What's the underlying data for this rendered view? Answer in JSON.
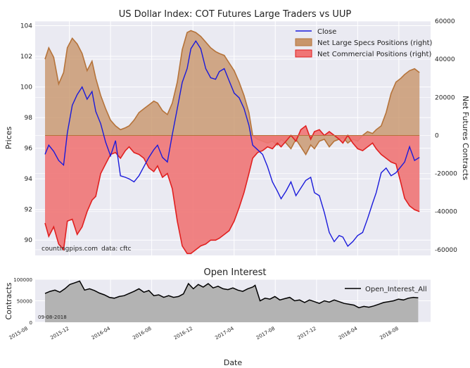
{
  "chart_data": [
    {
      "type": "line",
      "title": "US Dollar Index: COT Futures Large Traders vs UUP",
      "ylabel": "Prices",
      "y2label": "Net Futures Contracts",
      "ylim": [
        89,
        104.3
      ],
      "y2lim": [
        -63000,
        60000
      ],
      "yticks": [
        90,
        92,
        94,
        96,
        98,
        100,
        102,
        104
      ],
      "y2ticks": [
        -60000,
        -40000,
        -20000,
        0,
        20000,
        40000,
        60000
      ],
      "y2ticklabels": [
        "-60000",
        "-40000",
        "-20000",
        "0",
        "20000",
        "40000",
        "60000"
      ],
      "xlim": [
        2015.64,
        2018.84
      ],
      "legend_position": "top-right",
      "annotation_left": "countingpips.com",
      "annotation_right": "data: cftc",
      "series": [
        {
          "name": "Close",
          "axis": "left",
          "color": "#1a1adb",
          "x": [
            2015.72,
            2015.75,
            2015.79,
            2015.83,
            2015.87,
            2015.9,
            2015.94,
            2015.98,
            2016.02,
            2016.06,
            2016.1,
            2016.13,
            2016.17,
            2016.21,
            2016.25,
            2016.29,
            2016.33,
            2016.37,
            2016.4,
            2016.44,
            2016.48,
            2016.52,
            2016.56,
            2016.6,
            2016.63,
            2016.67,
            2016.71,
            2016.75,
            2016.79,
            2016.83,
            2016.87,
            2016.9,
            2016.94,
            2016.98,
            2017.02,
            2017.06,
            2017.1,
            2017.13,
            2017.17,
            2017.21,
            2017.25,
            2017.29,
            2017.33,
            2017.37,
            2017.4,
            2017.44,
            2017.48,
            2017.52,
            2017.56,
            2017.6,
            2017.63,
            2017.67,
            2017.71,
            2017.75,
            2017.79,
            2017.83,
            2017.87,
            2017.9,
            2017.94,
            2017.98,
            2018.02,
            2018.06,
            2018.1,
            2018.13,
            2018.17,
            2018.21,
            2018.25,
            2018.29,
            2018.33,
            2018.37,
            2018.4,
            2018.44,
            2018.48,
            2018.52,
            2018.56,
            2018.6,
            2018.63,
            2018.67,
            2018.71,
            2018.75
          ],
          "values": [
            95.6,
            96.2,
            95.8,
            95.2,
            94.9,
            97,
            98.8,
            99.5,
            100,
            99.2,
            99.7,
            98.4,
            97.6,
            96.4,
            95.5,
            96.5,
            94.2,
            94.1,
            94,
            93.8,
            94.2,
            94.8,
            95.4,
            95.9,
            96.2,
            95.4,
            95.1,
            96.9,
            98.6,
            100.3,
            101.2,
            102.5,
            103,
            102.5,
            101.2,
            100.6,
            100.5,
            101,
            101.2,
            100.4,
            99.6,
            99.3,
            98.6,
            97.5,
            96.2,
            95.9,
            95.6,
            94.8,
            93.8,
            93.2,
            92.7,
            93.2,
            93.8,
            92.9,
            93.4,
            93.9,
            94.1,
            93.1,
            92.9,
            91.8,
            90.5,
            89.9,
            90.3,
            90.2,
            89.6,
            89.9,
            90.3,
            90.5,
            91.4,
            92.4,
            93.1,
            94.4,
            94.7,
            94.2,
            94.4,
            94.8,
            95.1,
            96.1,
            95.2,
            95.4
          ]
        },
        {
          "name": "Net Large Specs Positions (right)",
          "axis": "right",
          "type": "area",
          "fill": "#c8956a",
          "stroke": "#b5733a",
          "x": [
            2015.72,
            2015.75,
            2015.79,
            2015.83,
            2015.87,
            2015.9,
            2015.94,
            2015.98,
            2016.02,
            2016.06,
            2016.1,
            2016.13,
            2016.17,
            2016.21,
            2016.25,
            2016.29,
            2016.33,
            2016.37,
            2016.4,
            2016.44,
            2016.48,
            2016.52,
            2016.56,
            2016.6,
            2016.63,
            2016.67,
            2016.71,
            2016.75,
            2016.79,
            2016.83,
            2016.87,
            2016.9,
            2016.94,
            2016.98,
            2017.02,
            2017.06,
            2017.1,
            2017.13,
            2017.17,
            2017.21,
            2017.25,
            2017.29,
            2017.33,
            2017.37,
            2017.4,
            2017.44,
            2017.48,
            2017.52,
            2017.56,
            2017.6,
            2017.63,
            2017.67,
            2017.71,
            2017.75,
            2017.79,
            2017.83,
            2017.87,
            2017.9,
            2017.94,
            2017.98,
            2018.02,
            2018.06,
            2018.1,
            2018.13,
            2018.17,
            2018.21,
            2018.25,
            2018.29,
            2018.33,
            2018.37,
            2018.4,
            2018.44,
            2018.48,
            2018.52,
            2018.56,
            2018.6,
            2018.63,
            2018.67,
            2018.71,
            2018.75
          ],
          "values": [
            40000,
            46000,
            41000,
            27000,
            33000,
            46000,
            51000,
            48000,
            43000,
            34000,
            39000,
            30000,
            21000,
            14000,
            8000,
            5000,
            3000,
            4000,
            5000,
            8000,
            12000,
            14000,
            16000,
            18000,
            17000,
            13000,
            11000,
            17000,
            28000,
            45000,
            54000,
            55000,
            54000,
            52000,
            49000,
            46000,
            44000,
            43000,
            42000,
            38000,
            34000,
            28000,
            21000,
            12000,
            0,
            -2000,
            -3000,
            -4000,
            -3000,
            -5000,
            -2000,
            -4000,
            -7000,
            -2000,
            -6000,
            -10000,
            -5000,
            -7000,
            -3000,
            -2000,
            -6000,
            -3000,
            -2000,
            -1000,
            -4000,
            -2000,
            -3000,
            0,
            2000,
            1000,
            3000,
            5000,
            12000,
            22000,
            28000,
            30000,
            32000,
            34000,
            35000,
            33000
          ]
        },
        {
          "name": "Net Commercial Positions (right)",
          "axis": "right",
          "type": "area",
          "fill": "#f07575",
          "stroke": "#e02020",
          "x": [
            2015.72,
            2015.75,
            2015.79,
            2015.83,
            2015.87,
            2015.9,
            2015.94,
            2015.98,
            2016.02,
            2016.06,
            2016.1,
            2016.13,
            2016.17,
            2016.21,
            2016.25,
            2016.29,
            2016.33,
            2016.37,
            2016.4,
            2016.44,
            2016.48,
            2016.52,
            2016.56,
            2016.6,
            2016.63,
            2016.67,
            2016.71,
            2016.75,
            2016.79,
            2016.83,
            2016.87,
            2016.9,
            2016.94,
            2016.98,
            2017.02,
            2017.06,
            2017.1,
            2017.13,
            2017.17,
            2017.21,
            2017.25,
            2017.29,
            2017.33,
            2017.37,
            2017.4,
            2017.44,
            2017.48,
            2017.52,
            2017.56,
            2017.6,
            2017.63,
            2017.67,
            2017.71,
            2017.75,
            2017.79,
            2017.83,
            2017.87,
            2017.9,
            2017.94,
            2017.98,
            2018.02,
            2018.06,
            2018.1,
            2018.13,
            2018.17,
            2018.21,
            2018.25,
            2018.29,
            2018.33,
            2018.37,
            2018.4,
            2018.44,
            2018.48,
            2018.52,
            2018.56,
            2018.6,
            2018.63,
            2018.67,
            2018.71,
            2018.75
          ],
          "values": [
            -46000,
            -53000,
            -48000,
            -57000,
            -60000,
            -45000,
            -44000,
            -52000,
            -48000,
            -40000,
            -34000,
            -32000,
            -20000,
            -15000,
            -10000,
            -9000,
            -12000,
            -8000,
            -6000,
            -9000,
            -10000,
            -12000,
            -17000,
            -19000,
            -16000,
            -22000,
            -20000,
            -28000,
            -45000,
            -58000,
            -62000,
            -62000,
            -60000,
            -58000,
            -57000,
            -55000,
            -55000,
            -54000,
            -52000,
            -50000,
            -45000,
            -38000,
            -30000,
            -20000,
            -12000,
            -9000,
            -8000,
            -6000,
            -7000,
            -4000,
            -6000,
            -3000,
            0,
            -3000,
            3000,
            5000,
            -2000,
            2000,
            3000,
            0,
            2000,
            0,
            -2000,
            -4000,
            0,
            -4000,
            -7000,
            -8000,
            -6000,
            -4000,
            -7000,
            -10000,
            -12000,
            -14000,
            -15000,
            -25000,
            -33000,
            -37000,
            -39000,
            -40000
          ]
        }
      ]
    },
    {
      "type": "area",
      "title": "Open Interest",
      "xlabel": "Date",
      "ylabel": "Contracts",
      "ylim": [
        0,
        100000
      ],
      "yticks": [
        0,
        50000,
        100000
      ],
      "xticklabels": [
        "2015-08",
        "2015-12",
        "2016-04",
        "2016-08",
        "2016-12",
        "2017-04",
        "2017-08",
        "2017-12",
        "2018-04",
        "2018-08"
      ],
      "xticks": [
        2015.583,
        2015.917,
        2016.25,
        2016.583,
        2016.917,
        2017.25,
        2017.583,
        2017.917,
        2018.25,
        2018.583
      ],
      "xlim": [
        2015.64,
        2018.84
      ],
      "legend_position": "top-right",
      "annotation": "09-08-2018",
      "series": [
        {
          "name": "Open_Interest_All",
          "color": "#000000",
          "fill": "#b3b3b3",
          "x": [
            2015.72,
            2015.76,
            2015.8,
            2015.84,
            2015.88,
            2015.92,
            2015.96,
            2016.0,
            2016.04,
            2016.08,
            2016.12,
            2016.16,
            2016.2,
            2016.24,
            2016.28,
            2016.32,
            2016.36,
            2016.4,
            2016.44,
            2016.48,
            2016.52,
            2016.56,
            2016.6,
            2016.64,
            2016.68,
            2016.72,
            2016.76,
            2016.8,
            2016.84,
            2016.88,
            2016.92,
            2016.96,
            2017.0,
            2017.04,
            2017.08,
            2017.12,
            2017.16,
            2017.2,
            2017.24,
            2017.28,
            2017.32,
            2017.36,
            2017.4,
            2017.42,
            2017.46,
            2017.5,
            2017.54,
            2017.58,
            2017.62,
            2017.66,
            2017.7,
            2017.74,
            2017.78,
            2017.82,
            2017.86,
            2017.9,
            2017.94,
            2017.98,
            2018.02,
            2018.06,
            2018.1,
            2018.14,
            2018.18,
            2018.22,
            2018.26,
            2018.3,
            2018.34,
            2018.38,
            2018.42,
            2018.46,
            2018.5,
            2018.54,
            2018.58,
            2018.62,
            2018.66,
            2018.7,
            2018.74
          ],
          "values": [
            67000,
            72000,
            75000,
            70000,
            78000,
            88000,
            92000,
            96000,
            75000,
            78000,
            74000,
            68000,
            64000,
            58000,
            56000,
            60000,
            62000,
            67000,
            72000,
            78000,
            70000,
            74000,
            62000,
            64000,
            58000,
            62000,
            58000,
            60000,
            66000,
            90000,
            78000,
            88000,
            82000,
            90000,
            80000,
            84000,
            78000,
            76000,
            80000,
            75000,
            72000,
            78000,
            82000,
            86000,
            50000,
            56000,
            54000,
            60000,
            52000,
            55000,
            58000,
            50000,
            52000,
            46000,
            52000,
            48000,
            44000,
            50000,
            47000,
            52000,
            48000,
            44000,
            42000,
            40000,
            34000,
            37000,
            35000,
            38000,
            42000,
            46000,
            48000,
            50000,
            54000,
            52000,
            56000,
            58000,
            57000
          ]
        }
      ]
    }
  ]
}
